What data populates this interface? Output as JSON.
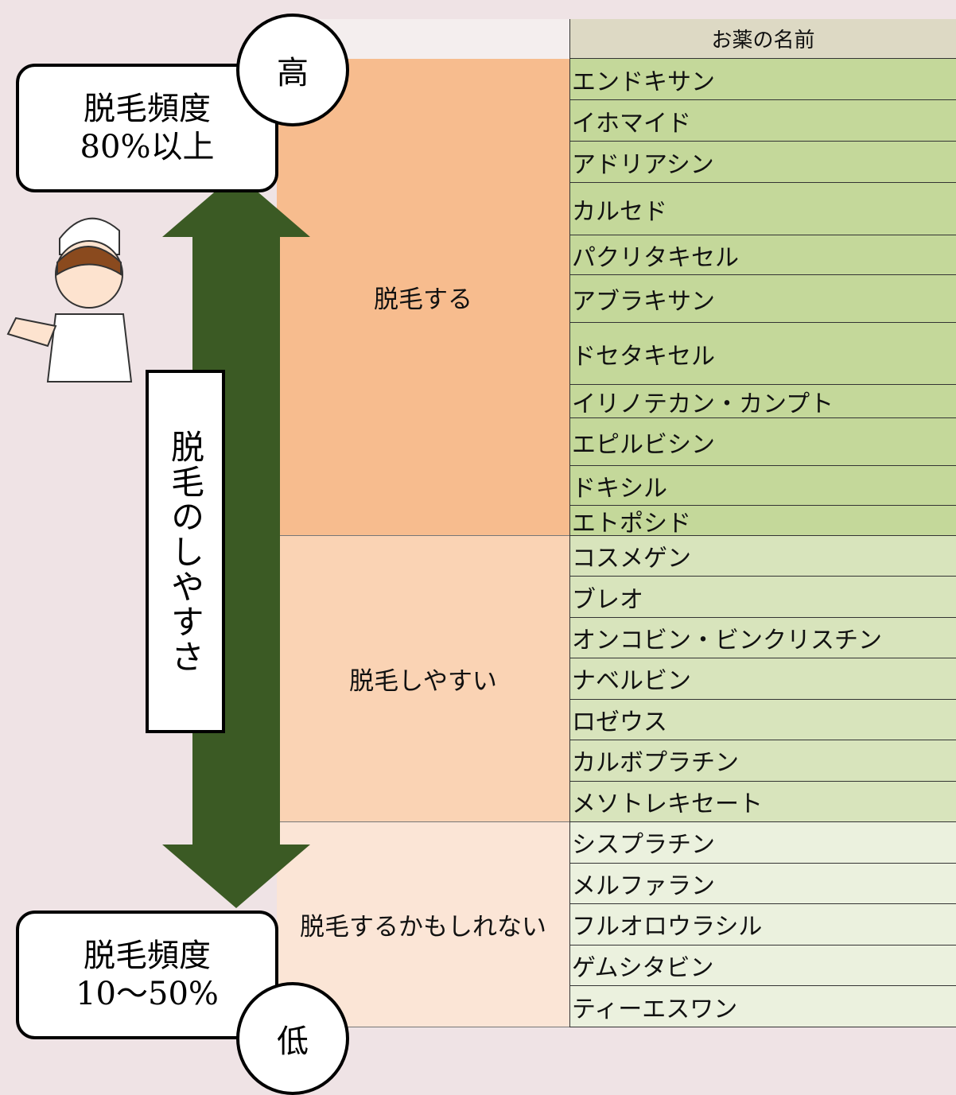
{
  "header": {
    "column_title": "お薬の名前"
  },
  "scale": {
    "high": "高",
    "low": "低",
    "axis_label": "脱毛のしやすさ",
    "top_box": {
      "line1": "脱毛頻度",
      "line2": "80%以上"
    },
    "bottom_box": {
      "line1": "脱毛頻度",
      "line2": "10〜50%"
    }
  },
  "groups": [
    {
      "label": "脱毛する",
      "drugs": [
        "エンドキサン",
        "イホマイド",
        "アドリアシン",
        "カルセド",
        "パクリタキセル",
        "アブラキサン",
        "ドセタキセル",
        "イリノテカン・カンプト",
        "エピルビシン",
        "ドキシル",
        "エトポシド"
      ]
    },
    {
      "label": "脱毛しやすい",
      "drugs": [
        "コスメゲン",
        "ブレオ",
        "オンコビン・ビンクリスチン",
        "ナベルビン",
        "ロゼウス",
        "カルボプラチン",
        "メソトレキセート"
      ]
    },
    {
      "label": "脱毛するかもしれない",
      "drugs": [
        "シスプラチン",
        "メルファラン",
        "フルオロウラシル",
        "ゲムシタビン",
        "ティーエスワン"
      ]
    }
  ]
}
